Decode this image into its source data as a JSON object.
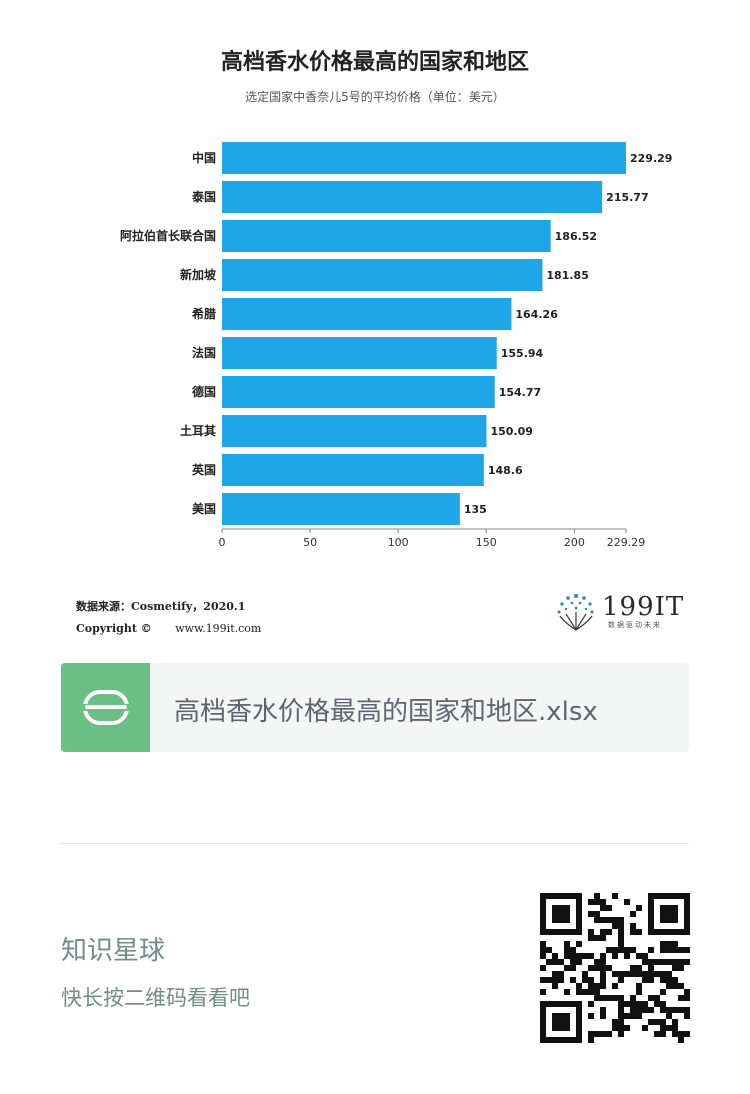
{
  "chart_data": {
    "type": "bar",
    "orientation": "horizontal",
    "title": "高档香水价格最高的国家和地区",
    "subtitle": "选定国家中香奈儿5号的平均价格（单位：美元）",
    "categories": [
      "中国",
      "泰国",
      "阿拉伯首长联合国",
      "新加坡",
      "希腊",
      "法国",
      "德国",
      "土耳其",
      "英国",
      "美国"
    ],
    "values": [
      229.29,
      215.77,
      186.52,
      181.85,
      164.26,
      155.94,
      154.77,
      150.09,
      148.6,
      135
    ],
    "value_labels": [
      "229.29",
      "215.77",
      "186.52",
      "181.85",
      "164.26",
      "155.94",
      "154.77",
      "150.09",
      "148.6",
      "135"
    ],
    "xlim": [
      0,
      229.29
    ],
    "x_ticks": [
      "0",
      "50",
      "100",
      "150",
      "200",
      "229.29"
    ],
    "x_tick_values": [
      0,
      50,
      100,
      150,
      200,
      229.29
    ],
    "grid": false,
    "bar_color": "#1ea6e8"
  },
  "footer": {
    "source": "数据来源：Cosmetify，2020.1",
    "copyright_label": "Copyright ©",
    "website": "www.199it.com"
  },
  "brand": {
    "name": "199IT",
    "tagline": "数据驱动未来"
  },
  "attachment": {
    "file_name": "高档香水价格最高的国家和地区.xlsx"
  },
  "promo": {
    "title": "知识星球",
    "subtitle": "快长按二维码看看吧"
  },
  "colors": {
    "accent_green": "#6bbf85",
    "promo_text": "#6f8f86"
  }
}
